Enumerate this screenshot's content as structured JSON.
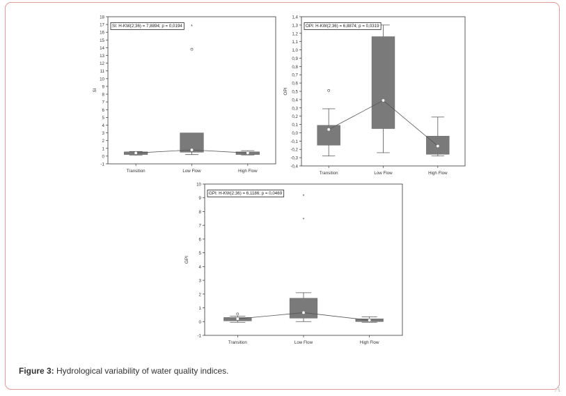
{
  "figure": {
    "label": "Figure 3:",
    "caption": "Hydrological variability of water quality indices.",
    "corner_mark": "A"
  },
  "colors": {
    "box_fill": "#7a7a7a",
    "line": "#555555",
    "axis": "#333333",
    "frame": "#e39a96"
  },
  "chart_data": [
    {
      "type": "box",
      "annotation": "SI: H-KW(2;36) = 7,8894; p = 0,0194",
      "ylabel": "SI",
      "xlabel": "",
      "categories": [
        "Transition",
        "Low Flow",
        "High Flow"
      ],
      "ylim": [
        -1,
        18
      ],
      "yticks": [
        -1,
        0,
        1,
        2,
        3,
        4,
        5,
        6,
        7,
        8,
        9,
        10,
        11,
        12,
        13,
        14,
        15,
        16,
        17,
        18
      ],
      "ytick_labels": [
        "-1",
        "0",
        "1",
        "2",
        "3",
        "4",
        "5",
        "6",
        "7",
        "8",
        "9",
        "10",
        "11",
        "12",
        "13",
        "14",
        "15",
        "16",
        "17",
        "18"
      ],
      "median": [
        0.4,
        0.8,
        0.4
      ],
      "q1": [
        0.2,
        0.5,
        0.2
      ],
      "q3": [
        0.55,
        3.0,
        0.55
      ],
      "whisker_low": [
        0.1,
        0.2,
        0.15
      ],
      "whisker_high": [
        0.6,
        0.9,
        0.7
      ],
      "outliers": [
        [],
        [
          13.8
        ],
        []
      ],
      "extremes": [
        [],
        [
          16.8
        ],
        []
      ]
    },
    {
      "type": "box",
      "annotation": "OPI: H-KW(2;36) = 6,8874; p = 0,0319",
      "ylabel": "OPI",
      "xlabel": "",
      "categories": [
        "Transition",
        "Low Flow",
        "High Flow"
      ],
      "ylim": [
        -0.4,
        1.4
      ],
      "yticks": [
        -0.4,
        -0.3,
        -0.2,
        -0.1,
        0,
        0.1,
        0.2,
        0.3,
        0.4,
        0.5,
        0.6,
        0.7,
        0.8,
        0.9,
        1.0,
        1.1,
        1.2,
        1.3,
        1.4
      ],
      "ytick_labels": [
        "-0,4",
        "-0,3",
        "-0,2",
        "-0,1",
        "0,0",
        "0,1",
        "0,2",
        "0,3",
        "0,4",
        "0,5",
        "0,6",
        "0,7",
        "0,8",
        "0,9",
        "1,0",
        "1,1",
        "1,2",
        "1,3",
        "1,4"
      ],
      "median": [
        0.04,
        0.39,
        -0.16
      ],
      "q1": [
        -0.15,
        0.05,
        -0.26
      ],
      "q3": [
        0.09,
        1.16,
        -0.04
      ],
      "whisker_low": [
        -0.28,
        -0.24,
        -0.28
      ],
      "whisker_high": [
        0.29,
        1.3,
        0.19
      ],
      "outliers": [
        [
          0.51
        ],
        [],
        []
      ],
      "extremes": [
        [],
        [],
        []
      ]
    },
    {
      "type": "box",
      "annotation": "GPI: H-KW(2;36) = 6,1186; p = 0,0469",
      "ylabel": "GPI",
      "xlabel": "",
      "categories": [
        "Transition",
        "Low Flow",
        "High Flow"
      ],
      "ylim": [
        -1,
        10
      ],
      "yticks": [
        -1,
        0,
        1,
        2,
        3,
        4,
        5,
        6,
        7,
        8,
        9,
        10
      ],
      "ytick_labels": [
        "-1",
        "0",
        "1",
        "2",
        "3",
        "4",
        "5",
        "6",
        "7",
        "8",
        "9",
        "10"
      ],
      "median": [
        0.2,
        0.65,
        0.1
      ],
      "q1": [
        0.05,
        0.25,
        0.0
      ],
      "q3": [
        0.3,
        1.7,
        0.2
      ],
      "whisker_low": [
        -0.05,
        0.0,
        -0.05
      ],
      "whisker_high": [
        0.4,
        2.1,
        0.35
      ],
      "outliers": [
        [
          0.55
        ],
        [],
        []
      ],
      "extremes": [
        [],
        [
          7.45,
          9.15
        ],
        []
      ]
    }
  ]
}
